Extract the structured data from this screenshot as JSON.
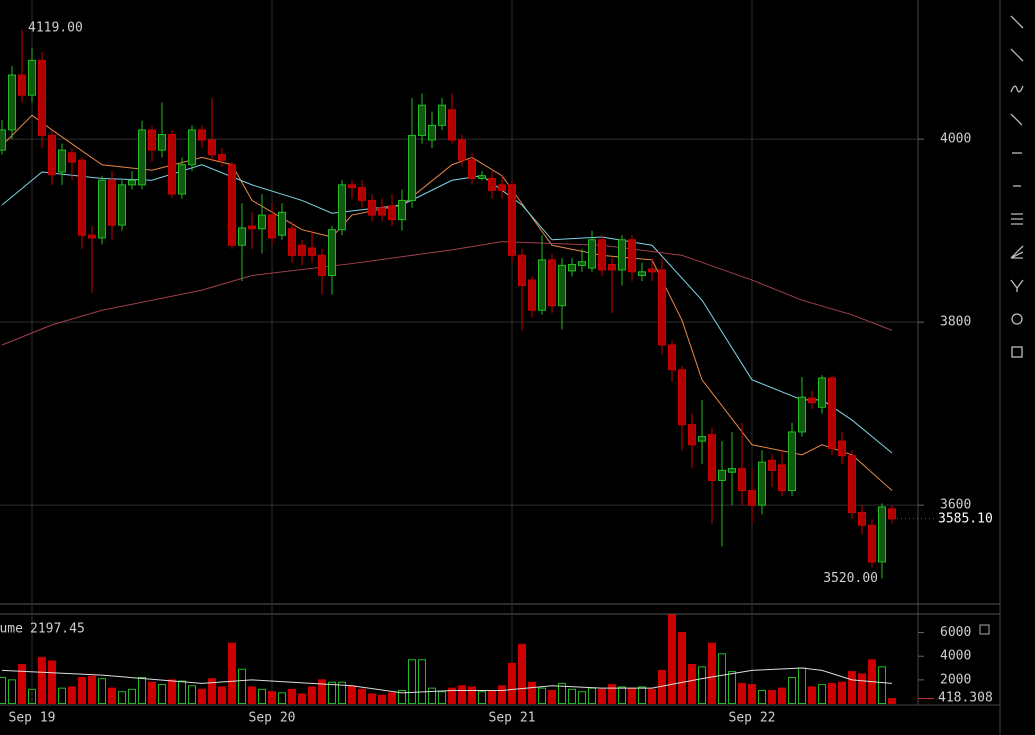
{
  "chart_data": [
    {
      "type": "candlestick",
      "categories": [
        null,
        null,
        null,
        "Sep 19",
        null,
        null,
        null,
        null,
        null,
        null,
        null,
        null,
        null,
        null,
        null,
        null,
        null,
        null,
        null,
        null,
        null,
        null,
        null,
        null,
        null,
        null,
        null,
        "Sep 20",
        null,
        null,
        null,
        null,
        null,
        null,
        null,
        null,
        null,
        null,
        null,
        null,
        null,
        null,
        null,
        null,
        null,
        null,
        null,
        null,
        null,
        null,
        null,
        "Sep 21",
        null,
        null,
        null,
        null,
        null,
        null,
        null,
        null,
        null,
        null,
        null,
        null,
        null,
        null,
        null,
        null,
        null,
        null,
        null,
        null,
        null,
        null,
        null,
        "Sep 22",
        null,
        null,
        null,
        null,
        null,
        null,
        null,
        null,
        null,
        null,
        null,
        null,
        null,
        null
      ],
      "open": [
        3988,
        4010,
        4070,
        4048,
        4086,
        4004,
        3964,
        3985,
        3977,
        3895,
        3892,
        3955,
        3906,
        3950,
        3950,
        4010,
        3988,
        4005,
        3940,
        3972,
        4010,
        3999,
        3983,
        3972,
        3884,
        3905,
        3902,
        3917,
        3895,
        3902,
        3884,
        3881,
        3873,
        3851,
        3901,
        3950,
        3947,
        3933,
        3925,
        3927,
        3912,
        3933,
        4004,
        3999,
        4015,
        4032,
        3999,
        3977,
        3957,
        3957,
        3950,
        3950,
        3873,
        3846,
        3813,
        3868,
        3818,
        3856,
        3862,
        3859,
        3890,
        3863,
        3857,
        3890,
        3851,
        3858,
        3857,
        3775,
        3748,
        3688,
        3670,
        3677,
        3627,
        3636,
        3640,
        3616,
        3600,
        3649,
        3644,
        3616,
        3680,
        3717,
        3707,
        3739,
        3670,
        3654,
        3592,
        3578,
        3538,
        3596
      ],
      "high": [
        4021,
        4080,
        4119,
        4100,
        4095,
        4010,
        3995,
        3990,
        3980,
        3905,
        3960,
        3965,
        3955,
        3965,
        4020,
        4015,
        4040,
        4010,
        3980,
        4015,
        4015,
        4045,
        3990,
        3975,
        3930,
        3920,
        3940,
        3930,
        3930,
        3910,
        3890,
        3900,
        3880,
        3905,
        3955,
        3955,
        3955,
        3940,
        3935,
        3940,
        3945,
        4045,
        4050,
        4030,
        4045,
        4050,
        4005,
        3985,
        3965,
        3965,
        3960,
        3955,
        3880,
        3850,
        3895,
        3875,
        3870,
        3870,
        3880,
        3900,
        3895,
        3870,
        3895,
        3895,
        3865,
        3870,
        3870,
        3780,
        3752,
        3700,
        3715,
        3685,
        3670,
        3680,
        3690,
        3640,
        3660,
        3655,
        3660,
        3690,
        3740,
        3725,
        3742,
        3742,
        3680,
        3660,
        3600,
        3585,
        3602,
        3600
      ],
      "low": [
        3983,
        4000,
        4040,
        4040,
        3990,
        3950,
        3950,
        3955,
        3880,
        3832,
        3885,
        3890,
        3900,
        3945,
        3945,
        3975,
        3980,
        3935,
        3935,
        3965,
        3990,
        3975,
        3970,
        3880,
        3845,
        3880,
        3875,
        3885,
        3890,
        3865,
        3862,
        3865,
        3830,
        3830,
        3895,
        3935,
        3925,
        3910,
        3910,
        3905,
        3900,
        3925,
        3995,
        3990,
        4010,
        3995,
        3970,
        3950,
        3955,
        3935,
        3935,
        3865,
        3790,
        3805,
        3808,
        3810,
        3792,
        3850,
        3855,
        3855,
        3850,
        3810,
        3840,
        3845,
        3845,
        3845,
        3765,
        3735,
        3660,
        3640,
        3645,
        3580,
        3555,
        3600,
        3600,
        3580,
        3590,
        3620,
        3610,
        3610,
        3675,
        3705,
        3700,
        3655,
        3645,
        3585,
        3568,
        3532,
        3520,
        3580
      ],
      "close": [
        4010,
        4070,
        4048,
        4086,
        4004,
        3961,
        3988,
        3975,
        3895,
        3892,
        3955,
        3906,
        3950,
        3955,
        4010,
        3988,
        4005,
        3940,
        3972,
        4010,
        3999,
        3983,
        3977,
        3884,
        3903,
        3902,
        3917,
        3892,
        3920,
        3873,
        3873,
        3873,
        3851,
        3901,
        3950,
        3947,
        3933,
        3917,
        3917,
        3912,
        3933,
        4004,
        4037,
        4015,
        4037,
        3999,
        3977,
        3957,
        3960,
        3944,
        3944,
        3873,
        3840,
        3813,
        3868,
        3818,
        3862,
        3863,
        3866,
        3890,
        3857,
        3857,
        3890,
        3855,
        3855,
        3855,
        3775,
        3748,
        3688,
        3666,
        3675,
        3627,
        3638,
        3640,
        3616,
        3600,
        3647,
        3638,
        3616,
        3680,
        3718,
        3712,
        3739,
        3662,
        3654,
        3592,
        3578,
        3538,
        3598,
        3585.1
      ],
      "up_color": "#22bb22",
      "down_color": "#cc0000",
      "ylim": [
        3492,
        4152
      ],
      "yticks": [
        3600,
        3800,
        4000
      ],
      "grid": true,
      "lines": [
        {
          "color": "#e8894a",
          "x": [
            0,
            3,
            5,
            10,
            15,
            20,
            23,
            25,
            30,
            33,
            35,
            40,
            45,
            47,
            50,
            55,
            60,
            65,
            68,
            70,
            75,
            80,
            82,
            85,
            89
          ],
          "values": [
            3993,
            4026,
            4010,
            3972,
            3966,
            3980,
            3972,
            3933,
            3901,
            3893,
            3917,
            3928,
            3972,
            3980,
            3960,
            3884,
            3873,
            3868,
            3802,
            3737,
            3666,
            3655,
            3666,
            3655,
            3616
          ]
        },
        {
          "color": "#7fd6e6",
          "x": [
            0,
            4,
            10,
            15,
            20,
            25,
            30,
            33,
            40,
            45,
            48,
            52,
            55,
            60,
            65,
            70,
            75,
            80,
            82,
            85,
            89
          ],
          "values": [
            3928,
            3964,
            3957,
            3955,
            3972,
            3950,
            3933,
            3919,
            3928,
            3955,
            3960,
            3928,
            3890,
            3893,
            3884,
            3824,
            3737,
            3715,
            3715,
            3693,
            3657
          ]
        },
        {
          "color": "#a0404a",
          "x": [
            0,
            5,
            10,
            20,
            25,
            35,
            45,
            50,
            60,
            68,
            75,
            80,
            85,
            89
          ],
          "values": [
            3775,
            3797,
            3813,
            3835,
            3851,
            3864,
            3879,
            3888,
            3884,
            3873,
            3846,
            3824,
            3808,
            3791
          ]
        }
      ],
      "high_label": {
        "value": 4119,
        "label": "4119.00"
      },
      "low_label": {
        "value": 3520,
        "label": "3520.00"
      },
      "last_price": {
        "value": 3585.1,
        "label": "3585.10"
      }
    },
    {
      "type": "volume",
      "title": "Volume",
      "legend_value": 2197.45,
      "values": [
        2200,
        2000,
        3300,
        1200,
        3900,
        3600,
        1300,
        1400,
        2200,
        2300,
        2100,
        1300,
        1000,
        1200,
        2200,
        1800,
        1600,
        2000,
        1900,
        1500,
        1200,
        2100,
        1400,
        5100,
        2900,
        1400,
        1200,
        1000,
        900,
        1200,
        800,
        1400,
        2000,
        1800,
        1800,
        1500,
        1200,
        800,
        700,
        900,
        1100,
        3700,
        3700,
        1300,
        1000,
        1300,
        1500,
        1400,
        1000,
        1100,
        1500,
        3400,
        5000,
        1800,
        1300,
        1100,
        1700,
        1200,
        1000,
        1300,
        1200,
        1600,
        1400,
        1300,
        1400,
        1200,
        2800,
        7500,
        6000,
        3300,
        3100,
        5100,
        4200,
        2700,
        1700,
        1600,
        1100,
        1100,
        1300,
        2200,
        3000,
        1400,
        1600,
        1700,
        1800,
        2700,
        2500,
        3700,
        3100,
        418.308
      ],
      "ylim": [
        0,
        7740
      ],
      "yticks": [
        2000,
        4000,
        6000
      ],
      "line": {
        "color": "#dddddd",
        "x": [
          0,
          10,
          20,
          25,
          35,
          40,
          45,
          50,
          55,
          60,
          65,
          70,
          75,
          80,
          82,
          85,
          89
        ],
        "values": [
          2800,
          2400,
          1700,
          2000,
          1500,
          900,
          1100,
          1100,
          1500,
          1300,
          1300,
          2100,
          2800,
          3000,
          2800,
          2000,
          1700
        ]
      },
      "last_volume": 418.308
    }
  ]
}
